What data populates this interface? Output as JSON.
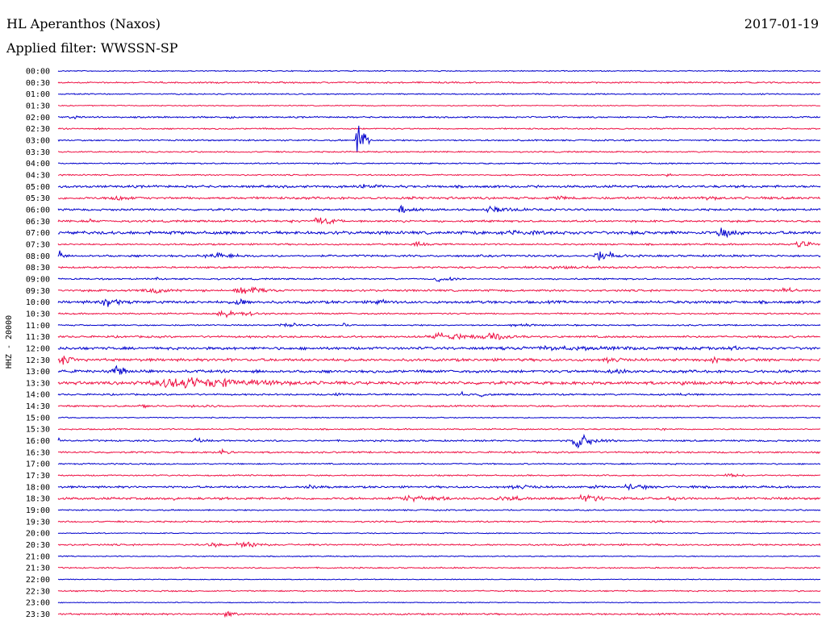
{
  "header": {
    "station": "HL Aperanthos (Naxos)",
    "date": "2017-01-19",
    "filter": "Applied filter: WWSSN-SP"
  },
  "chart_data": {
    "type": "line",
    "ylabel": "HHZ - 20000",
    "colors": [
      "#0000cc",
      "#ee1144"
    ],
    "rows": [
      {
        "label": "00:00",
        "noise": 0.6,
        "events": []
      },
      {
        "label": "00:30",
        "noise": 0.9,
        "events": [
          {
            "x": 0.715,
            "w": 0.004,
            "a": 3
          }
        ]
      },
      {
        "label": "01:00",
        "noise": 0.7,
        "events": []
      },
      {
        "label": "01:30",
        "noise": 0.6,
        "events": []
      },
      {
        "label": "02:00",
        "noise": 0.9,
        "events": [
          {
            "x": 0.02,
            "w": 0.05,
            "a": 2
          },
          {
            "x": 0.225,
            "w": 0.02,
            "a": 2
          }
        ]
      },
      {
        "label": "02:30",
        "noise": 0.8,
        "events": []
      },
      {
        "label": "03:00",
        "noise": 0.9,
        "events": [
          {
            "x": 0.393,
            "w": 0.012,
            "a": 28
          }
        ]
      },
      {
        "label": "03:30",
        "noise": 0.8,
        "events": []
      },
      {
        "label": "04:00",
        "noise": 0.8,
        "events": []
      },
      {
        "label": "04:30",
        "noise": 0.8,
        "events": [
          {
            "x": 0.8,
            "w": 0.008,
            "a": 4
          }
        ]
      },
      {
        "label": "05:00",
        "noise": 1.4,
        "events": [
          {
            "x": 0.4,
            "w": 0.06,
            "a": 3
          },
          {
            "x": 0.6,
            "w": 0.02,
            "a": 2
          }
        ]
      },
      {
        "label": "05:30",
        "noise": 1.4,
        "events": [
          {
            "x": 0.075,
            "w": 0.04,
            "a": 4
          },
          {
            "x": 0.465,
            "w": 0.02,
            "a": 3
          },
          {
            "x": 0.655,
            "w": 0.02,
            "a": 4
          },
          {
            "x": 0.85,
            "w": 0.05,
            "a": 3
          }
        ]
      },
      {
        "label": "06:00",
        "noise": 1.2,
        "events": [
          {
            "x": 0.45,
            "w": 0.04,
            "a": 5
          },
          {
            "x": 0.57,
            "w": 0.06,
            "a": 5
          }
        ]
      },
      {
        "label": "06:30",
        "noise": 1.2,
        "events": [
          {
            "x": 0.04,
            "w": 0.02,
            "a": 4
          },
          {
            "x": 0.3,
            "w": 0.015,
            "a": 3
          },
          {
            "x": 0.34,
            "w": 0.04,
            "a": 6
          },
          {
            "x": 0.45,
            "w": 0.02,
            "a": 3
          }
        ]
      },
      {
        "label": "07:00",
        "noise": 1.8,
        "events": [
          {
            "x": 0.6,
            "w": 0.18,
            "a": 3
          },
          {
            "x": 0.75,
            "w": 0.004,
            "a": 10
          },
          {
            "x": 0.87,
            "w": 0.04,
            "a": 6
          }
        ]
      },
      {
        "label": "07:30",
        "noise": 1.0,
        "events": [
          {
            "x": 0.47,
            "w": 0.02,
            "a": 4
          },
          {
            "x": 0.97,
            "w": 0.03,
            "a": 5
          }
        ]
      },
      {
        "label": "08:00",
        "noise": 1.2,
        "events": [
          {
            "x": 0.002,
            "w": 0.005,
            "a": 10
          },
          {
            "x": 0.2,
            "w": 0.08,
            "a": 4
          },
          {
            "x": 0.71,
            "w": 0.03,
            "a": 8
          }
        ]
      },
      {
        "label": "08:30",
        "noise": 1.0,
        "events": [
          {
            "x": 0.63,
            "w": 0.37,
            "a": 2
          }
        ]
      },
      {
        "label": "09:00",
        "noise": 0.9,
        "events": [
          {
            "x": 0.13,
            "w": 0.02,
            "a": 2
          },
          {
            "x": 0.5,
            "w": 0.04,
            "a": 4
          }
        ]
      },
      {
        "label": "09:30",
        "noise": 1.2,
        "events": [
          {
            "x": 0.12,
            "w": 0.06,
            "a": 4
          },
          {
            "x": 0.24,
            "w": 0.06,
            "a": 5
          },
          {
            "x": 0.95,
            "w": 0.05,
            "a": 4
          }
        ]
      },
      {
        "label": "10:00",
        "noise": 1.6,
        "events": [
          {
            "x": 0.065,
            "w": 0.05,
            "a": 6
          },
          {
            "x": 0.235,
            "w": 0.02,
            "a": 6
          },
          {
            "x": 0.42,
            "w": 0.02,
            "a": 5
          }
        ]
      },
      {
        "label": "10:30",
        "noise": 0.9,
        "events": [
          {
            "x": 0.22,
            "w": 0.06,
            "a": 5
          }
        ]
      },
      {
        "label": "11:00",
        "noise": 0.8,
        "events": [
          {
            "x": 0.3,
            "w": 0.06,
            "a": 3
          },
          {
            "x": 0.375,
            "w": 0.004,
            "a": 6
          },
          {
            "x": 0.6,
            "w": 0.08,
            "a": 2
          }
        ]
      },
      {
        "label": "11:30",
        "noise": 1.2,
        "events": [
          {
            "x": 0.5,
            "w": 0.1,
            "a": 5
          },
          {
            "x": 0.57,
            "w": 0.04,
            "a": 6
          }
        ]
      },
      {
        "label": "12:00",
        "noise": 1.6,
        "events": [
          {
            "x": 0.65,
            "w": 0.35,
            "a": 3
          },
          {
            "x": 0.88,
            "w": 0.02,
            "a": 5
          }
        ]
      },
      {
        "label": "12:30",
        "noise": 1.6,
        "events": [
          {
            "x": 0.005,
            "w": 0.03,
            "a": 6
          },
          {
            "x": 0.22,
            "w": 0.02,
            "a": 4
          },
          {
            "x": 0.72,
            "w": 0.05,
            "a": 4
          },
          {
            "x": 0.86,
            "w": 0.05,
            "a": 4
          }
        ]
      },
      {
        "label": "13:00",
        "noise": 1.6,
        "events": [
          {
            "x": 0.075,
            "w": 0.02,
            "a": 9
          },
          {
            "x": 0.73,
            "w": 0.04,
            "a": 5
          }
        ]
      },
      {
        "label": "13:30",
        "noise": 1.8,
        "events": [
          {
            "x": 0.16,
            "w": 0.2,
            "a": 8
          },
          {
            "x": 0.46,
            "w": 0.02,
            "a": 3
          },
          {
            "x": 0.82,
            "w": 0.03,
            "a": 3
          }
        ]
      },
      {
        "label": "14:00",
        "noise": 1.0,
        "events": [
          {
            "x": 0.365,
            "w": 0.04,
            "a": 2
          },
          {
            "x": 0.53,
            "w": 0.003,
            "a": 5
          },
          {
            "x": 0.555,
            "w": 0.01,
            "a": 4
          },
          {
            "x": 0.82,
            "w": 0.02,
            "a": 4
          }
        ]
      },
      {
        "label": "14:30",
        "noise": 1.0,
        "events": [
          {
            "x": 0.11,
            "w": 0.02,
            "a": 4
          },
          {
            "x": 0.18,
            "w": 0.1,
            "a": 2
          }
        ]
      },
      {
        "label": "15:00",
        "noise": 0.6,
        "events": []
      },
      {
        "label": "15:30",
        "noise": 0.8,
        "events": [
          {
            "x": 0.79,
            "w": 0.02,
            "a": 3
          }
        ]
      },
      {
        "label": "16:00",
        "noise": 1.0,
        "events": [
          {
            "x": 0.0,
            "w": 0.005,
            "a": 5
          },
          {
            "x": 0.18,
            "w": 0.02,
            "a": 4
          },
          {
            "x": 0.68,
            "w": 0.04,
            "a": 11
          }
        ]
      },
      {
        "label": "16:30",
        "noise": 1.0,
        "events": [
          {
            "x": 0.215,
            "w": 0.02,
            "a": 4
          }
        ]
      },
      {
        "label": "17:00",
        "noise": 0.8,
        "events": []
      },
      {
        "label": "17:30",
        "noise": 0.8,
        "events": [
          {
            "x": 0.88,
            "w": 0.03,
            "a": 3
          }
        ]
      },
      {
        "label": "18:00",
        "noise": 1.2,
        "events": [
          {
            "x": 0.33,
            "w": 0.04,
            "a": 3
          },
          {
            "x": 0.6,
            "w": 0.08,
            "a": 3
          },
          {
            "x": 0.7,
            "w": 0.02,
            "a": 3
          },
          {
            "x": 0.75,
            "w": 0.04,
            "a": 5
          },
          {
            "x": 0.83,
            "w": 0.01,
            "a": 3
          }
        ]
      },
      {
        "label": "18:30",
        "noise": 1.4,
        "events": [
          {
            "x": 0.15,
            "w": 0.02,
            "a": 3
          },
          {
            "x": 0.46,
            "w": 0.12,
            "a": 4
          },
          {
            "x": 0.58,
            "w": 0.06,
            "a": 4
          },
          {
            "x": 0.69,
            "w": 0.05,
            "a": 6
          },
          {
            "x": 0.8,
            "w": 0.04,
            "a": 3
          }
        ]
      },
      {
        "label": "19:00",
        "noise": 0.8,
        "events": []
      },
      {
        "label": "19:30",
        "noise": 0.9,
        "events": [
          {
            "x": 0.78,
            "w": 0.02,
            "a": 4
          }
        ]
      },
      {
        "label": "20:00",
        "noise": 0.6,
        "events": []
      },
      {
        "label": "20:30",
        "noise": 1.0,
        "events": [
          {
            "x": 0.2,
            "w": 0.04,
            "a": 3
          },
          {
            "x": 0.24,
            "w": 0.05,
            "a": 4
          }
        ]
      },
      {
        "label": "21:00",
        "noise": 0.6,
        "events": []
      },
      {
        "label": "21:30",
        "noise": 0.8,
        "events": []
      },
      {
        "label": "22:00",
        "noise": 0.5,
        "events": []
      },
      {
        "label": "22:30",
        "noise": 0.8,
        "events": []
      },
      {
        "label": "23:00",
        "noise": 0.5,
        "events": []
      },
      {
        "label": "23:30",
        "noise": 1.0,
        "events": [
          {
            "x": 0.22,
            "w": 0.02,
            "a": 5
          }
        ]
      }
    ]
  }
}
